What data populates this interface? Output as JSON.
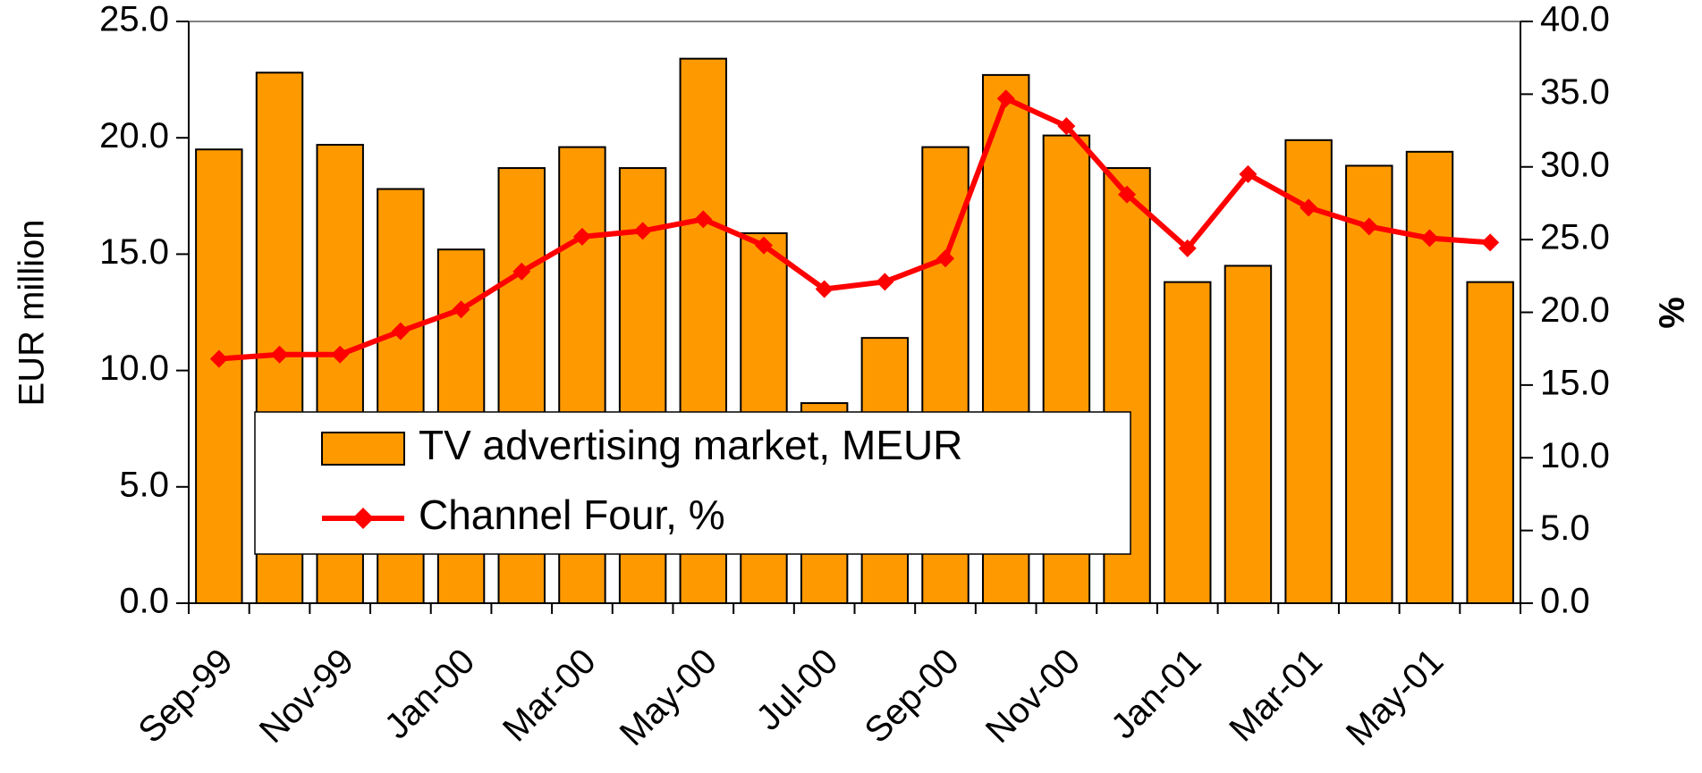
{
  "chart_data": {
    "type": "bar",
    "categories": [
      "Sep-99",
      null,
      "Nov-99",
      null,
      "Jan-00",
      null,
      "Mar-00",
      null,
      "May-00",
      null,
      "Jul-00",
      null,
      "Sep-00",
      null,
      "Nov-00",
      null,
      "Jan-01",
      null,
      "Mar-01",
      null,
      "May-01",
      null
    ],
    "series": [
      {
        "name": "TV advertising market, MEUR",
        "type": "bar",
        "color": "#ff9900",
        "axis": "y",
        "values": [
          19.5,
          22.8,
          19.7,
          17.8,
          15.2,
          18.7,
          19.6,
          18.7,
          23.4,
          15.9,
          8.6,
          11.4,
          19.6,
          22.7,
          20.1,
          18.7,
          13.8,
          14.5,
          19.9,
          18.8,
          19.4,
          13.8
        ]
      },
      {
        "name": "Channel Four, %",
        "type": "line",
        "color": "#ff0000",
        "axis": "y2",
        "values": [
          16.8,
          17.1,
          17.1,
          18.7,
          20.2,
          22.8,
          25.2,
          25.6,
          26.4,
          24.6,
          21.6,
          22.1,
          23.7,
          34.7,
          32.8,
          28.1,
          24.4,
          29.5,
          27.2,
          25.9,
          25.1,
          24.8
        ]
      }
    ],
    "ylabel": "EUR million",
    "y2label": "%",
    "ylim": [
      0,
      25
    ],
    "yticks": [
      {
        "value": 0,
        "label": "0.0"
      },
      {
        "value": 5,
        "label": "5.0"
      },
      {
        "value": 10,
        "label": "10.0"
      },
      {
        "value": 15,
        "label": "15.0"
      },
      {
        "value": 20,
        "label": "20.0"
      },
      {
        "value": 25,
        "label": "25.0"
      }
    ],
    "y2lim": [
      0,
      40
    ],
    "y2ticks": [
      {
        "value": 0,
        "label": "0.0"
      },
      {
        "value": 5,
        "label": "5.0"
      },
      {
        "value": 10,
        "label": "10.0"
      },
      {
        "value": 15,
        "label": "15.0"
      },
      {
        "value": 20,
        "label": "20.0"
      },
      {
        "value": 25,
        "label": "25.0"
      },
      {
        "value": 30,
        "label": "30.0"
      },
      {
        "value": 35,
        "label": "35.0"
      },
      {
        "value": 40,
        "label": "40.0"
      }
    ],
    "grid": false
  }
}
